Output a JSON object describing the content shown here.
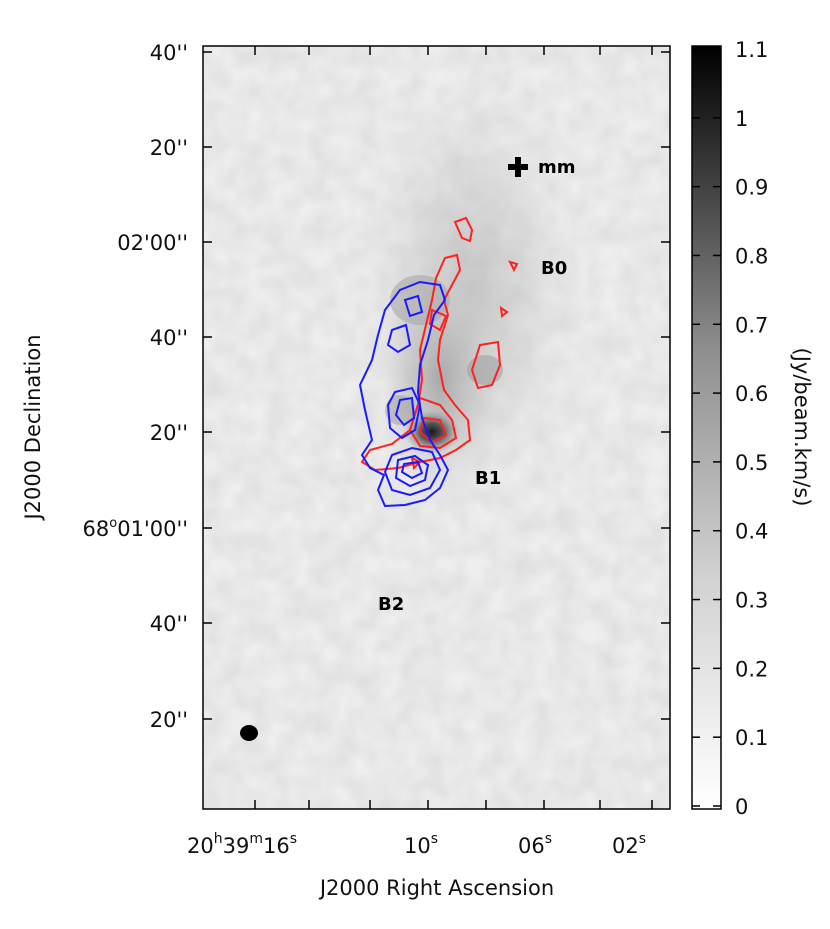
{
  "chart_data": {
    "type": "heatmap",
    "xlabel": "J2000 Right Ascension",
    "ylabel": "J2000 Declination",
    "colorbar_label": "(Jy/beam.km/s)",
    "x_tick_labels": [
      {
        "base": "20",
        "h": "h",
        "m_val": "39",
        "m": "m",
        "s_val": "16",
        "s": "s"
      },
      {
        "base": "",
        "h": "",
        "m_val": "",
        "m": "",
        "s_val": "10",
        "s": "s"
      },
      {
        "base": "",
        "h": "",
        "m_val": "",
        "m": "",
        "s_val": "06",
        "s": "s"
      },
      {
        "base": "",
        "h": "",
        "m_val": "",
        "m": "",
        "s_val": "02",
        "s": "s"
      }
    ],
    "y_tick_labels": [
      "40''",
      "20''",
      "02'00''",
      "40''",
      "20''",
      "68°01'00''",
      "40''",
      "20''"
    ],
    "y_tick_label_special": {
      "index": 5,
      "deg": "68",
      "deg_sym": "o",
      "rest": "01'00''"
    },
    "colorbar": {
      "range": [
        0,
        1.1
      ],
      "colormap": "grayscale (white to black)",
      "ticks": [
        "1.1",
        "1",
        "0.9",
        "0.8",
        "0.7",
        "0.6",
        "0.5",
        "0.4",
        "0.3",
        "0.2",
        "0.1",
        "0"
      ]
    },
    "contours": [
      {
        "color": "#ff2020",
        "meaning": "red-shifted emission"
      },
      {
        "color": "#1a1aff",
        "meaning": "blue-shifted emission"
      }
    ],
    "annotations": [
      {
        "text": "mm",
        "marker": "plus"
      },
      {
        "text": "B0"
      },
      {
        "text": "B1"
      },
      {
        "text": "B2"
      }
    ],
    "beam": "filled black ellipse, bottom-left"
  }
}
